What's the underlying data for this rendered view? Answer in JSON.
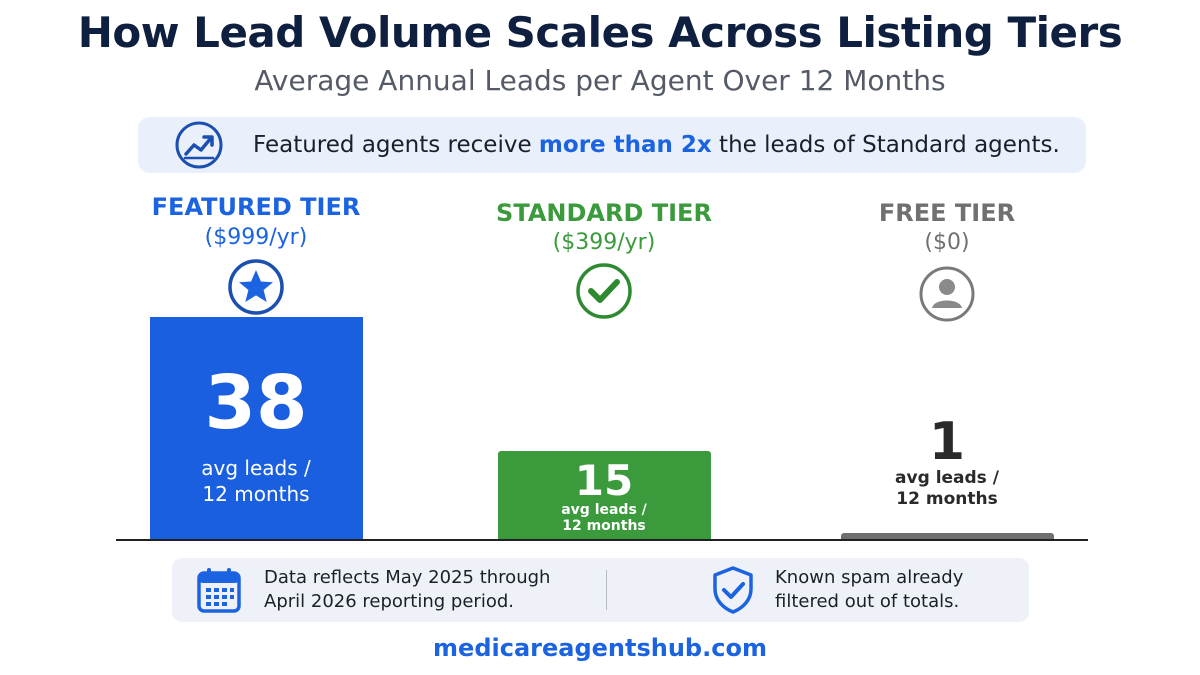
{
  "colors": {
    "featured": "#1a5fe0",
    "standard": "#3a9a3c",
    "free": "#6f6f6f",
    "title": "#0e1f3f",
    "accent": "#1b63e0"
  },
  "chart_data": {
    "type": "bar",
    "title": "How Lead Volume Scales Across Listing Tiers",
    "subtitle": "Average Annual Leads per Agent Over 12 Months",
    "categories": [
      "FEATURED TIER",
      "STANDARD TIER",
      "FREE TIER"
    ],
    "prices": [
      "($999/yr)",
      "($399/yr)",
      "($0)"
    ],
    "icons": [
      "star-icon",
      "checkmark-icon",
      "person-icon"
    ],
    "values": [
      38,
      15,
      1
    ],
    "value_unit": "avg leads / 12 months",
    "unit_line1": "avg leads /",
    "unit_line2": "12 months",
    "ylim": [
      0,
      38
    ],
    "grid": false,
    "legend": "none"
  },
  "callout": {
    "prefix": "Featured agents receive ",
    "highlight": "more than 2x",
    "suffix": " the leads of Standard agents."
  },
  "footer": {
    "left_line1": "Data reflects May 2025 through",
    "left_line2": "April 2026 reporting period.",
    "right_line1": "Known spam already",
    "right_line2": "filtered out of totals.",
    "left_icon": "calendar-icon",
    "right_icon": "shield-check-icon"
  },
  "site": "medicareagentshub.com"
}
